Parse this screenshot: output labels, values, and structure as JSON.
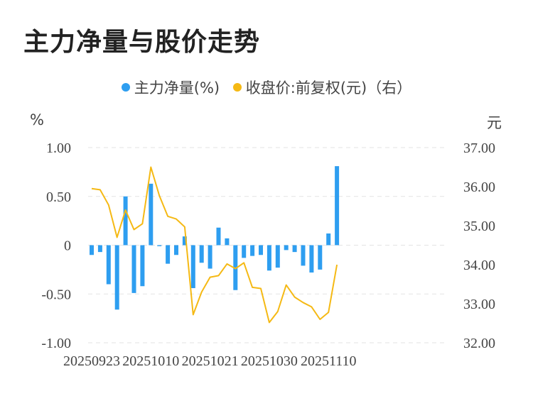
{
  "title": "主力净量与股价走势",
  "legend": {
    "net_label": "主力净量(%)",
    "price_label": "收盘价:前复权(元)（右）"
  },
  "units": {
    "left": "%",
    "right": "元"
  },
  "colors": {
    "bar": "#2e9ef0",
    "line": "#f5b914",
    "grid": "#e3e3e3"
  },
  "chart_data": {
    "type": "bar",
    "x_tick_labels": [
      "20250923",
      "20251010",
      "20251021",
      "20251030",
      "20251110"
    ],
    "x_tick_indices": [
      0,
      7,
      14,
      21,
      28
    ],
    "yleft": {
      "ylim": [
        -1.0,
        1.0
      ],
      "ticks": [
        "1.00",
        "0.50",
        "0",
        "-0.50",
        "-1.00"
      ],
      "values": [
        1.0,
        0.5,
        0,
        -0.5,
        -1.0
      ]
    },
    "yright": {
      "ylim": [
        32.0,
        37.0
      ],
      "ticks": [
        "37.00",
        "36.00",
        "35.00",
        "34.00",
        "33.00",
        "32.00"
      ],
      "values": [
        37,
        36,
        35,
        34,
        33,
        32
      ]
    },
    "series": [
      {
        "name": "主力净量(%)",
        "type": "bar",
        "axis": "left",
        "values": [
          -0.1,
          -0.07,
          -0.4,
          -0.66,
          0.5,
          -0.49,
          -0.42,
          0.63,
          -0.01,
          -0.19,
          -0.1,
          0.09,
          -0.44,
          -0.18,
          -0.24,
          0.18,
          0.07,
          -0.46,
          -0.13,
          -0.11,
          -0.1,
          -0.26,
          -0.23,
          -0.05,
          -0.07,
          -0.21,
          -0.28,
          -0.25,
          0.12,
          0.81
        ]
      },
      {
        "name": "收盘价:前复权(元)（右）",
        "type": "line",
        "axis": "right",
        "values": [
          35.95,
          35.92,
          35.53,
          34.7,
          35.4,
          34.9,
          35.05,
          36.5,
          35.77,
          35.24,
          35.17,
          34.97,
          32.72,
          33.3,
          33.68,
          33.72,
          34.02,
          33.9,
          34.05,
          33.42,
          33.39,
          32.52,
          32.8,
          33.48,
          33.17,
          33.03,
          32.92,
          32.6,
          32.78,
          34.0
        ]
      }
    ]
  }
}
